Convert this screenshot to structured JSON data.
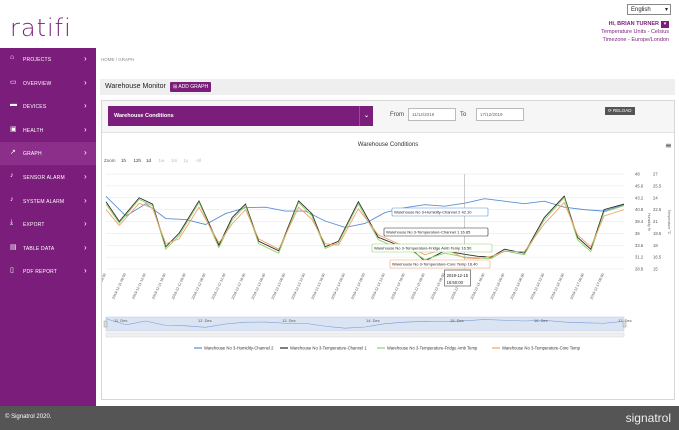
{
  "app": {
    "logo": "ratifi",
    "language": "English",
    "user": "Hi, BRIAN TURNER",
    "units": "Temperature Units - Celsius",
    "timezone": "Timezone - Europe/London"
  },
  "sidebar": {
    "items": [
      {
        "label": "PROJECTS",
        "icon": "home-icon"
      },
      {
        "label": "OVERVIEW",
        "icon": "monitor-icon"
      },
      {
        "label": "DEVICES",
        "icon": "device-icon"
      },
      {
        "label": "HEALTH",
        "icon": "briefcase-icon"
      },
      {
        "label": "GRAPH",
        "icon": "graph-icon"
      },
      {
        "label": "SENSOR ALARM",
        "icon": "bell-icon"
      },
      {
        "label": "SYSTEM ALARM",
        "icon": "bell-icon"
      },
      {
        "label": "EXPORT",
        "icon": "export-icon"
      },
      {
        "label": "TABLE DATA",
        "icon": "table-icon"
      },
      {
        "label": "PDF REPORT",
        "icon": "pdf-icon"
      }
    ]
  },
  "breadcrumb": "HOME  /  GRAPH",
  "page": {
    "title": "Warehouse Monitor",
    "add_graph": "ADD GRAPH"
  },
  "filter": {
    "selected": "Warehouse Conditions",
    "from_label": "From",
    "from_value": "11/12/2019",
    "to_label": "To",
    "to_value": "17/12/2019",
    "reload": "RELOAD"
  },
  "chart_data": {
    "type": "line",
    "title": "Warehouse Conditions",
    "zoom_label": "Zoom",
    "zoom_options": [
      "1h",
      "12h",
      "1d",
      "1w",
      "1m",
      "1y",
      "All"
    ],
    "zoom_enabled": [
      true,
      true,
      true,
      false,
      false,
      false,
      false
    ],
    "x_tick_labels": [
      "2019-12-11 00:00",
      "2019-12-11 06:00",
      "2019-12-11 12:00",
      "2019-12-11 18:00",
      "2019-12-12 00:00",
      "2019-12-12 06:00",
      "2019-12-12 12:00",
      "2019-12-12 18:00",
      "2019-12-13 00:00",
      "2019-12-13 06:00",
      "2019-12-13 12:00",
      "2019-12-13 18:00",
      "2019-12-14 00:00",
      "2019-12-14 06:00",
      "2019-12-14 12:00",
      "2019-12-14 18:00",
      "2019-12-15 00:00",
      "2019-12-15 06:00",
      "2019-12-15 12:00",
      "2019-12-15 18:00",
      "2019-12-16 00:00",
      "2019-12-16 06:00",
      "2019-12-16 12:00",
      "2019-12-16 18:00",
      "2019-12-17 00:00",
      "2019-12-17 06:00"
    ],
    "y_left_ticks": [
      48,
      45.6,
      43.2,
      40.8,
      38.4,
      36,
      33.6,
      31.2,
      28.8
    ],
    "y_right_ticks": [
      27,
      25.5,
      24,
      22.5,
      21,
      19.5,
      18,
      16.5,
      15
    ],
    "y_left_label": "Humidity %",
    "y_right_label": "Temperature °C",
    "navigator_labels": [
      "11. Dec",
      "12. Dec",
      "13. Dec",
      "14. Dec",
      "15. Dec",
      "16. Dec",
      "17. Dec"
    ],
    "series": [
      {
        "name": "Warehouse No 3 - Humidity - Channel 2",
        "color": "#5b8fd6",
        "axis": "left",
        "x": [
          0,
          6,
          12,
          18,
          24,
          30,
          36,
          42,
          48,
          54,
          60,
          66,
          72,
          78,
          84,
          90,
          96,
          102,
          108,
          114,
          120,
          126,
          132,
          138,
          144,
          150,
          156
        ],
        "values": [
          43.5,
          39.5,
          42.0,
          39.0,
          38.8,
          37.8,
          40.0,
          41.2,
          41.3,
          40.5,
          40.5,
          38.5,
          37.2,
          38.0,
          40.2,
          41.2,
          41.8,
          41.5,
          42.1,
          43.0,
          42.5,
          42.0,
          42.5,
          41.3,
          40.8,
          40.5,
          41.8
        ]
      },
      {
        "name": "Warehouse No 3 - Temperature - Channel 1",
        "color": "#2a2a2a",
        "axis": "right",
        "x": [
          0,
          4,
          10,
          14,
          18,
          22,
          28,
          34,
          38,
          42,
          46,
          52,
          58,
          62,
          66,
          70,
          76,
          82,
          88,
          92,
          96,
          102,
          108,
          112,
          116,
          120,
          126,
          132,
          138,
          142,
          146,
          150,
          156
        ],
        "values": [
          23.5,
          21.0,
          24.0,
          23.2,
          17.8,
          19.5,
          23.6,
          18.0,
          21.5,
          23.2,
          18.5,
          17.3,
          23.6,
          22.0,
          17.8,
          18.5,
          23.5,
          19.0,
          18.0,
          17.5,
          16.0,
          17.3,
          16.85,
          16.6,
          16.5,
          17.5,
          17.0,
          21.5,
          24.2,
          19.0,
          17.5,
          22.5,
          23.2
        ]
      },
      {
        "name": "Warehouse No 3 - Temperature - Fridge Amb Temp",
        "color": "#8fd16a",
        "axis": "right",
        "x": [
          0,
          4,
          10,
          14,
          18,
          22,
          28,
          34,
          38,
          42,
          46,
          52,
          58,
          62,
          66,
          70,
          76,
          82,
          88,
          92,
          96,
          102,
          108,
          112,
          116,
          120,
          126,
          132,
          138,
          142,
          146,
          150,
          156
        ],
        "values": [
          23.2,
          20.8,
          23.8,
          23.0,
          17.5,
          19.2,
          23.4,
          17.7,
          21.2,
          23.0,
          18.2,
          17.0,
          23.4,
          21.7,
          17.6,
          18.3,
          23.2,
          18.7,
          17.6,
          17.3,
          16.2,
          17.0,
          16.5,
          16.4,
          16.3,
          17.3,
          16.8,
          21.2,
          24.0,
          18.7,
          17.2,
          22.2,
          23.0
        ]
      },
      {
        "name": "Warehouse No 3 - Temperature - Core Temp",
        "color": "#f0a26a",
        "axis": "right",
        "x": [
          0,
          4,
          10,
          14,
          18,
          22,
          28,
          34,
          38,
          42,
          46,
          52,
          58,
          62,
          66,
          70,
          76,
          82,
          88,
          92,
          96,
          102,
          108,
          112,
          116,
          120,
          126,
          132,
          138,
          142,
          146,
          150,
          156
        ],
        "values": [
          22.5,
          20.5,
          23.3,
          22.7,
          18.2,
          18.8,
          22.8,
          18.3,
          20.7,
          22.5,
          18.8,
          17.5,
          22.8,
          21.3,
          18.2,
          18.0,
          22.6,
          19.3,
          18.2,
          17.7,
          16.8,
          17.5,
          16.4,
          16.3,
          16.6,
          17.2,
          17.2,
          20.7,
          23.4,
          19.3,
          17.8,
          21.7,
          22.5
        ]
      }
    ],
    "tooltip": {
      "date": "2019-12-15",
      "time": "16:50:00",
      "items": [
        {
          "text": "Warehouse No 3-Humidity-Channel 2 42.10",
          "color": "#5b8fd6"
        },
        {
          "text": "Warehouse No 3-Temperature-Channel 1 16.85",
          "color": "#2a2a2a"
        },
        {
          "text": "Warehouse No 3-Temperature-Fridge Amb Temp 16.50",
          "color": "#8fd16a"
        },
        {
          "text": "Warehouse No 3-Temperature-Core Temp 16.40",
          "color": "#f0a26a"
        }
      ]
    },
    "legend": [
      {
        "text": "Warehouse No 3-Humidity-Channel 2",
        "color": "#5b8fd6"
      },
      {
        "text": "Warehouse No 3-Temperature-Channel 1",
        "color": "#2a2a2a"
      },
      {
        "text": "Warehouse No 3-Temperature-Fridge Amb Temp",
        "color": "#8fd16a"
      },
      {
        "text": "Warehouse No 3-Temperature-Core Temp",
        "color": "#f0a26a"
      }
    ],
    "menu_icon": "hamburger-icon"
  },
  "footer": {
    "copyright": "© Signatrol 2020.",
    "brand": "signatrol"
  },
  "colors": {
    "brand": "#7b1d7a",
    "footer": "#555555"
  }
}
